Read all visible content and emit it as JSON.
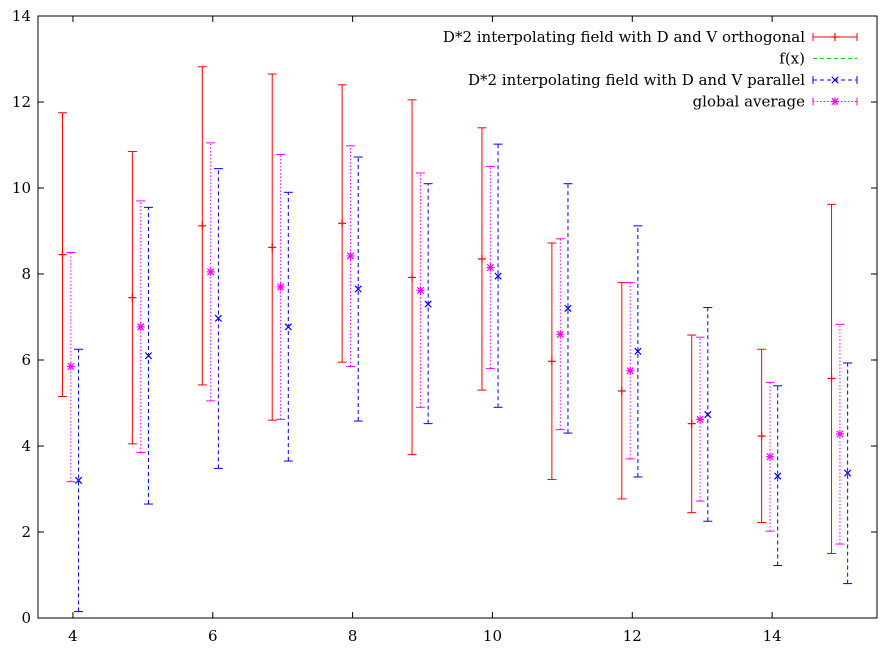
{
  "chart_data": {
    "type": "scatter",
    "title": "",
    "xlabel": "",
    "ylabel": "",
    "xlim": [
      3.5,
      15.5
    ],
    "ylim": [
      0,
      14
    ],
    "xticks": [
      4,
      6,
      8,
      10,
      12,
      14
    ],
    "yticks": [
      0,
      2,
      4,
      6,
      8,
      10,
      12,
      14
    ],
    "grid": false,
    "legend_position": "top-right",
    "series": [
      {
        "name": "D*2 interpolating field with D and V orthogonal",
        "color": "#ff0000",
        "marker": "plus",
        "line_style": "solid",
        "error_bars": true,
        "points": [
          {
            "x": 3.85,
            "y": 8.45,
            "ylow": 5.15,
            "yhigh": 11.75
          },
          {
            "x": 4.85,
            "y": 7.45,
            "ylow": 4.05,
            "yhigh": 10.85
          },
          {
            "x": 5.85,
            "y": 9.12,
            "ylow": 5.42,
            "yhigh": 12.82
          },
          {
            "x": 6.85,
            "y": 8.62,
            "ylow": 4.6,
            "yhigh": 12.65
          },
          {
            "x": 7.85,
            "y": 9.18,
            "ylow": 5.95,
            "yhigh": 12.4
          },
          {
            "x": 8.85,
            "y": 7.92,
            "ylow": 3.8,
            "yhigh": 12.05
          },
          {
            "x": 9.85,
            "y": 8.35,
            "ylow": 5.3,
            "yhigh": 11.4
          },
          {
            "x": 10.85,
            "y": 5.97,
            "ylow": 3.22,
            "yhigh": 8.72
          },
          {
            "x": 11.85,
            "y": 5.28,
            "ylow": 2.77,
            "yhigh": 7.8
          },
          {
            "x": 12.85,
            "y": 4.52,
            "ylow": 2.45,
            "yhigh": 6.58
          },
          {
            "x": 13.85,
            "y": 4.23,
            "ylow": 2.22,
            "yhigh": 6.25
          },
          {
            "x": 14.85,
            "y": 5.57,
            "ylow": 1.5,
            "yhigh": 9.62
          }
        ]
      },
      {
        "name": "f(x)",
        "color": "#00cc00",
        "marker": "none",
        "line_style": "dashed",
        "error_bars": false,
        "points": []
      },
      {
        "name": "D*2 interpolating field with D and V parallel",
        "color": "#0000ff",
        "marker": "x",
        "line_style": "dashed",
        "error_bars": true,
        "points": [
          {
            "x": 4.08,
            "y": 3.2,
            "ylow": 0.15,
            "yhigh": 6.25
          },
          {
            "x": 5.08,
            "y": 6.1,
            "ylow": 2.65,
            "yhigh": 9.55
          },
          {
            "x": 6.08,
            "y": 6.97,
            "ylow": 3.48,
            "yhigh": 10.45
          },
          {
            "x": 7.08,
            "y": 6.77,
            "ylow": 3.65,
            "yhigh": 9.9
          },
          {
            "x": 8.08,
            "y": 7.65,
            "ylow": 4.58,
            "yhigh": 10.72
          },
          {
            "x": 9.08,
            "y": 7.3,
            "ylow": 4.52,
            "yhigh": 10.1
          },
          {
            "x": 10.08,
            "y": 7.95,
            "ylow": 4.9,
            "yhigh": 11.02
          },
          {
            "x": 11.08,
            "y": 7.2,
            "ylow": 4.3,
            "yhigh": 10.1
          },
          {
            "x": 12.08,
            "y": 6.2,
            "ylow": 3.28,
            "yhigh": 9.12
          },
          {
            "x": 13.08,
            "y": 4.73,
            "ylow": 2.25,
            "yhigh": 7.22
          },
          {
            "x": 14.08,
            "y": 3.3,
            "ylow": 1.22,
            "yhigh": 5.4
          },
          {
            "x": 15.08,
            "y": 3.37,
            "ylow": 0.8,
            "yhigh": 5.93
          }
        ]
      },
      {
        "name": "global average",
        "color": "#ff00ff",
        "marker": "asterisk",
        "line_style": "dotted",
        "error_bars": true,
        "points": [
          {
            "x": 3.97,
            "y": 5.85,
            "ylow": 3.17,
            "yhigh": 8.5
          },
          {
            "x": 4.97,
            "y": 6.77,
            "ylow": 3.85,
            "yhigh": 9.7
          },
          {
            "x": 5.97,
            "y": 8.05,
            "ylow": 5.05,
            "yhigh": 11.05
          },
          {
            "x": 6.97,
            "y": 7.7,
            "ylow": 4.62,
            "yhigh": 10.78
          },
          {
            "x": 7.97,
            "y": 8.42,
            "ylow": 5.85,
            "yhigh": 10.98
          },
          {
            "x": 8.97,
            "y": 7.62,
            "ylow": 4.9,
            "yhigh": 10.35
          },
          {
            "x": 9.97,
            "y": 8.15,
            "ylow": 5.8,
            "yhigh": 10.5
          },
          {
            "x": 10.97,
            "y": 6.6,
            "ylow": 4.38,
            "yhigh": 8.82
          },
          {
            "x": 11.97,
            "y": 5.75,
            "ylow": 3.7,
            "yhigh": 7.8
          },
          {
            "x": 12.97,
            "y": 4.62,
            "ylow": 2.72,
            "yhigh": 6.53
          },
          {
            "x": 13.97,
            "y": 3.75,
            "ylow": 2.02,
            "yhigh": 5.48
          },
          {
            "x": 14.97,
            "y": 4.28,
            "ylow": 1.72,
            "yhigh": 6.83
          }
        ]
      }
    ]
  }
}
